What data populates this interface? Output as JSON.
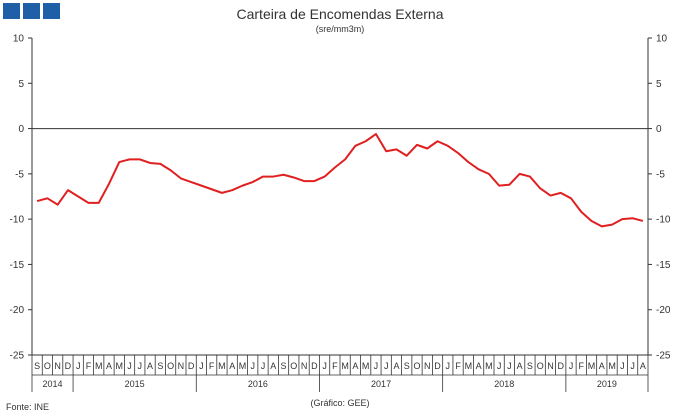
{
  "header": {
    "title": "Carteira de Encomendas Externa",
    "subtitle": "(sre/mm3m)"
  },
  "footer": {
    "source": "Fonte:  INE",
    "credit": "(Gráfico:  GEE)"
  },
  "colors": {
    "logo": "#1f5fa7",
    "series": "#e02020",
    "axis": "#333333"
  },
  "chart_data": {
    "type": "line",
    "title": "Carteira de Encomendas Externa",
    "subtitle": "(sre/mm3m)",
    "ylim": [
      -25,
      10
    ],
    "yticks": [
      10,
      5,
      0,
      -5,
      -10,
      -15,
      -20,
      -25
    ],
    "month_labels": [
      "S",
      "O",
      "N",
      "D",
      "J",
      "F",
      "M",
      "A",
      "M",
      "J",
      "J",
      "A",
      "S",
      "O",
      "N",
      "D",
      "J",
      "F",
      "M",
      "A",
      "M",
      "J",
      "J",
      "A",
      "S",
      "O",
      "N",
      "D",
      "J",
      "F",
      "M",
      "A",
      "M",
      "J",
      "J",
      "A",
      "S",
      "O",
      "N",
      "D",
      "J",
      "F",
      "M",
      "A",
      "M",
      "J",
      "J",
      "A",
      "S",
      "O",
      "N",
      "D",
      "J",
      "F",
      "M",
      "A",
      "M",
      "J",
      "J",
      "A"
    ],
    "years": [
      {
        "label": "2014",
        "start": 0,
        "count": 4
      },
      {
        "label": "2015",
        "start": 4,
        "count": 12
      },
      {
        "label": "2016",
        "start": 16,
        "count": 12
      },
      {
        "label": "2017",
        "start": 28,
        "count": 12
      },
      {
        "label": "2018",
        "start": 40,
        "count": 12
      },
      {
        "label": "2019",
        "start": 52,
        "count": 8
      }
    ],
    "zero_line": true,
    "series": [
      {
        "values": [
          -8.0,
          -7.7,
          -8.4,
          -6.8,
          -7.5,
          -8.2,
          -8.2,
          -6.1,
          -3.7,
          -3.4,
          -3.4,
          -3.8,
          -3.9,
          -4.6,
          -5.5,
          -5.9,
          -6.3,
          -6.7,
          -7.1,
          -6.8,
          -6.3,
          -5.9,
          -5.3,
          -5.3,
          -5.1,
          -5.4,
          -5.8,
          -5.8,
          -5.3,
          -4.3,
          -3.4,
          -1.9,
          -1.4,
          -0.6,
          -2.5,
          -2.3,
          -3.0,
          -1.8,
          -2.2,
          -1.4,
          -1.9,
          -2.7,
          -3.7,
          -4.5,
          -5.0,
          -6.3,
          -6.2,
          -5.0,
          -5.3,
          -6.6,
          -7.4,
          -7.1,
          -7.7,
          -9.2,
          -10.2,
          -10.8,
          -10.6,
          -10.0,
          -9.9,
          -10.2
        ]
      }
    ],
    "legend": "none",
    "grid": false
  }
}
